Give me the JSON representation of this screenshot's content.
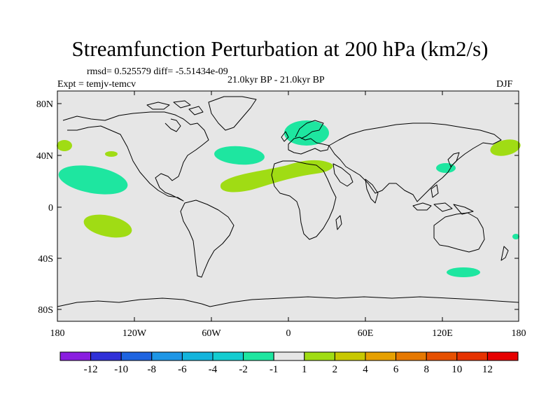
{
  "title": "Streamfunction Perturbation at 200 hPa (km2/s)",
  "stats": "rmsd= 0.525579 diff= -5.51434e-09",
  "experiment": "Expt = temjv-temcv",
  "period": "21.0kyr BP - 21.0kyr BP",
  "season": "DJF",
  "lat_ticks": [
    "80N",
    "40N",
    "0",
    "40S",
    "80S"
  ],
  "lon_ticks": [
    "180",
    "120W",
    "60W",
    "0",
    "60E",
    "120E",
    "180"
  ],
  "colorbar": {
    "labels": [
      "-12",
      "-10",
      "-8",
      "-6",
      "-4",
      "-2",
      "-1",
      "1",
      "2",
      "4",
      "6",
      "8",
      "10",
      "12"
    ],
    "colors": [
      "#8a1ee0",
      "#3030d8",
      "#1e64e0",
      "#1e96e6",
      "#14b4dc",
      "#14ccd0",
      "#1ee6a0",
      "#e6e6e6",
      "#a0dc14",
      "#c8c800",
      "#e6a000",
      "#e67800",
      "#e65000",
      "#e63200",
      "#e60000"
    ]
  },
  "colors": {
    "land_ocean": "#e6e6e6",
    "neg1": "#1ee6a0",
    "pos1": "#a0dc14"
  },
  "anomalies": [
    {
      "name": "blob-north-atlantic",
      "sign": "neg",
      "lon": -32,
      "lat": 40
    },
    {
      "name": "blob-europe",
      "sign": "neg",
      "lon": 22,
      "lat": 55
    },
    {
      "name": "blob-north-pacific-east",
      "sign": "neg",
      "lon": -148,
      "lat": 22
    },
    {
      "name": "blob-south-pacific",
      "sign": "pos",
      "lon": -138,
      "lat": -15
    },
    {
      "name": "blob-africa-arabia",
      "sign": "pos",
      "lon": 5,
      "lat": 25
    },
    {
      "name": "blob-japan",
      "sign": "neg",
      "lon": 126,
      "lat": 33
    },
    {
      "name": "blob-north-pacific-west",
      "sign": "pos",
      "lon": 170,
      "lat": 45
    },
    {
      "name": "blob-southern-ocean",
      "sign": "neg",
      "lon": 137,
      "lat": -50
    }
  ]
}
